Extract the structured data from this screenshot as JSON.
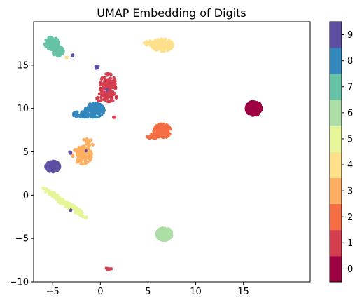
{
  "chart_data": {
    "type": "scatter",
    "title": "UMAP Embedding of Digits",
    "xlabel": "",
    "ylabel": "",
    "xlim": [
      -7,
      22
    ],
    "ylim": [
      -10,
      20
    ],
    "xticks": [
      -5,
      0,
      5,
      10,
      15
    ],
    "yticks": [
      -10,
      -5,
      0,
      5,
      10,
      15
    ],
    "grid": false,
    "colormap": "Spectral",
    "colorbar": {
      "range": [
        -0.5,
        9.5
      ],
      "ticks": [
        0,
        1,
        2,
        3,
        4,
        5,
        6,
        7,
        8,
        9
      ],
      "colors": [
        "#9e0142",
        "#d53e4f",
        "#f46d43",
        "#fdae61",
        "#fee08b",
        "#e6f598",
        "#abdda4",
        "#66c2a5",
        "#3288bd",
        "#5e4fa2"
      ]
    },
    "clusters": [
      {
        "label": 0,
        "center": [
          16.1,
          10.0
        ],
        "spread": [
          0.45,
          0.45
        ],
        "count": 170
      },
      {
        "label": 1,
        "center": [
          0.8,
          12.6
        ],
        "spread": [
          0.45,
          0.8
        ],
        "count": 120
      },
      {
        "label": 1,
        "center": [
          0.6,
          11.3
        ],
        "spread": [
          0.6,
          0.3
        ],
        "count": 50
      },
      {
        "label": 1,
        "center": [
          1.4,
          9.0
        ],
        "spread": [
          0.1,
          0.1
        ],
        "count": 4
      },
      {
        "label": 1,
        "center": [
          0.9,
          -8.5
        ],
        "spread": [
          0.2,
          0.1
        ],
        "count": 8
      },
      {
        "label": 2,
        "center": [
          6.5,
          7.4
        ],
        "spread": [
          0.5,
          0.45
        ],
        "count": 130
      },
      {
        "label": 2,
        "center": [
          5.6,
          6.8
        ],
        "spread": [
          0.4,
          0.15
        ],
        "count": 30
      },
      {
        "label": 3,
        "center": [
          -1.9,
          4.6
        ],
        "spread": [
          0.55,
          0.55
        ],
        "count": 120
      },
      {
        "label": 3,
        "center": [
          -1.3,
          6.0
        ],
        "spread": [
          0.3,
          0.4
        ],
        "count": 25
      },
      {
        "label": 4,
        "center": [
          6.5,
          17.3
        ],
        "spread": [
          0.6,
          0.4
        ],
        "count": 130
      },
      {
        "label": 4,
        "center": [
          5.3,
          17.5
        ],
        "spread": [
          0.4,
          0.15
        ],
        "count": 20
      },
      {
        "label": 4,
        "center": [
          -3.5,
          15.9
        ],
        "spread": [
          0.05,
          0.05
        ],
        "count": 2
      },
      {
        "label": 5,
        "center": [
          -3.7,
          -0.9
        ],
        "spread": [
          1.3,
          0.45
        ],
        "count": 140
      },
      {
        "label": 6,
        "center": [
          6.7,
          -4.5
        ],
        "spread": [
          0.45,
          0.4
        ],
        "count": 160
      },
      {
        "label": 7,
        "center": [
          -5.1,
          17.5
        ],
        "spread": [
          0.4,
          0.4
        ],
        "count": 100
      },
      {
        "label": 7,
        "center": [
          -4.5,
          16.6
        ],
        "spread": [
          0.35,
          0.3
        ],
        "count": 60
      },
      {
        "label": 8,
        "center": [
          -0.6,
          9.8
        ],
        "spread": [
          0.55,
          0.45
        ],
        "count": 130
      },
      {
        "label": 8,
        "center": [
          -1.8,
          9.3
        ],
        "spread": [
          0.6,
          0.2
        ],
        "count": 50
      },
      {
        "label": 9,
        "center": [
          -5.0,
          3.3
        ],
        "spread": [
          0.4,
          0.35
        ],
        "count": 150
      },
      {
        "label": 9,
        "center": [
          -0.3,
          14.8
        ],
        "spread": [
          0.1,
          0.15
        ],
        "count": 6
      },
      {
        "label": 9,
        "center": [
          -2.9,
          16.1
        ],
        "spread": [
          0.1,
          0.1
        ],
        "count": 3
      },
      {
        "label": 9,
        "center": [
          -3.1,
          4.9
        ],
        "spread": [
          0.15,
          0.1
        ],
        "count": 3
      },
      {
        "label": 9,
        "center": [
          -3.1,
          -1.7
        ],
        "spread": [
          0.05,
          0.05
        ],
        "count": 2
      },
      {
        "label": 9,
        "center": [
          0.7,
          12.1
        ],
        "spread": [
          0.05,
          0.05
        ],
        "count": 2
      },
      {
        "label": 9,
        "center": [
          -1.5,
          5.2
        ],
        "spread": [
          0.05,
          0.05
        ],
        "count": 1
      }
    ]
  }
}
